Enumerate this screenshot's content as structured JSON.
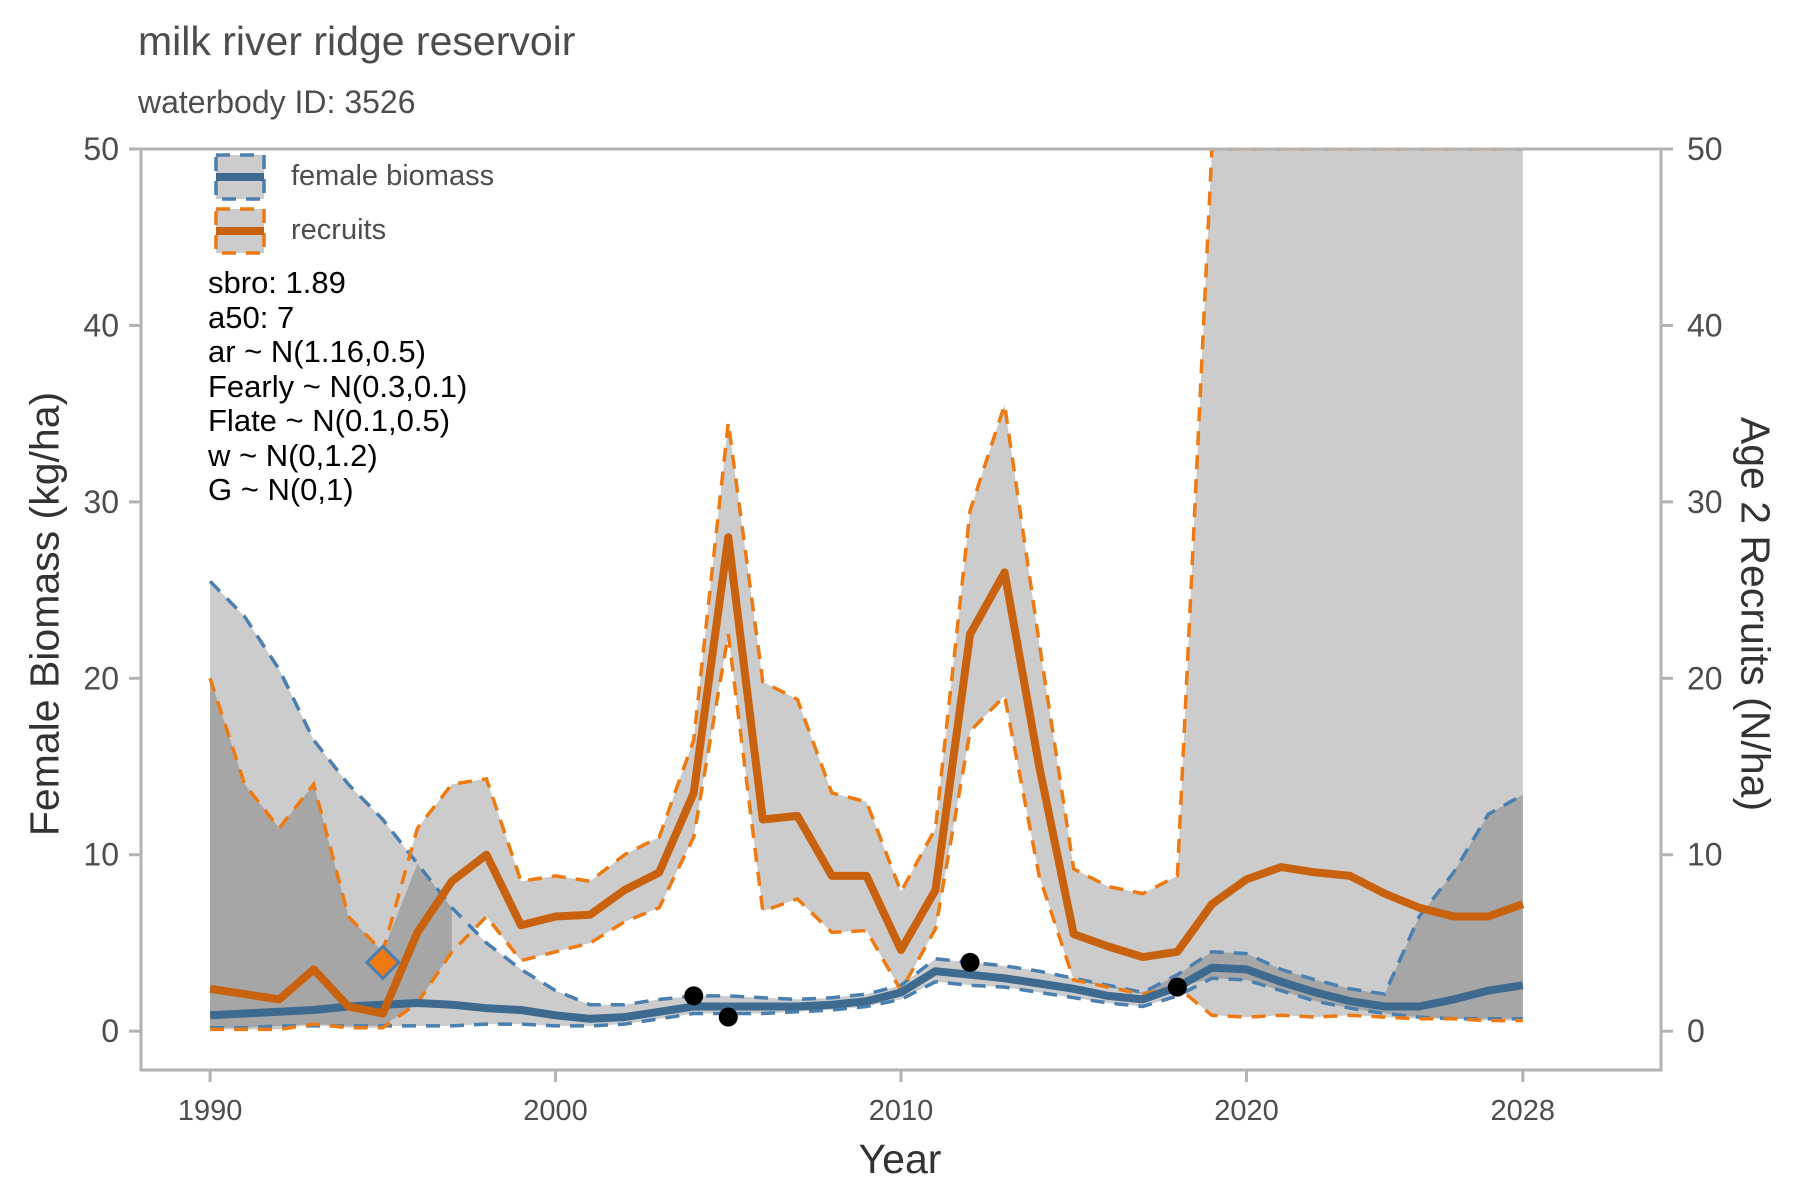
{
  "header": {
    "title": "milk river ridge reservoir",
    "subtitle": "waterbody ID: 3526"
  },
  "params": [
    "sbro: 1.89",
    "a50: 7",
    "ar ~ N(1.16,0.5)",
    "Fearly ~ N(0.3,0.1)",
    "Flate ~ N(0.1,0.5)",
    "w ~ N(0,1.2)",
    "G ~ N(0,1)"
  ],
  "colors": {
    "biomass": "#3f6a8f",
    "biomass_dash": "#4a7fb0",
    "recruits": "#c8620e",
    "recruits_dash": "#ee7a12",
    "ribbon": "#cccccc",
    "overlap": "#a6a6a6",
    "points": "#000000",
    "marker": "#ef7a12"
  },
  "chart_data": {
    "type": "line",
    "xlabel": "Year",
    "ylabel": "Female Biomass (kg/ha)",
    "ylabel_right": "Age 2 Recruits (N/ha)",
    "xlim": [
      1988,
      2032
    ],
    "ylim": [
      -2.2,
      50
    ],
    "y2lim": [
      -2.2,
      50
    ],
    "x_ticks": [
      1990,
      2000,
      2010,
      2020,
      2028
    ],
    "y_ticks": [
      0,
      10,
      20,
      30,
      40,
      50
    ],
    "y2_ticks": [
      0,
      10,
      20,
      30,
      40,
      50
    ],
    "legend": {
      "placement": "top-left",
      "entries": [
        "female biomass",
        "recruits"
      ]
    },
    "grid": false,
    "years": [
      1990,
      1991,
      1992,
      1993,
      1994,
      1995,
      1996,
      1997,
      1998,
      1999,
      2000,
      2001,
      2002,
      2003,
      2004,
      2005,
      2006,
      2007,
      2008,
      2009,
      2010,
      2011,
      2012,
      2013,
      2014,
      2015,
      2016,
      2017,
      2018,
      2019,
      2020,
      2021,
      2022,
      2023,
      2024,
      2025,
      2026,
      2027,
      2028
    ],
    "series": [
      {
        "name": "female biomass",
        "axis": "left",
        "median": [
          0.9,
          1.0,
          1.1,
          1.2,
          1.4,
          1.5,
          1.6,
          1.5,
          1.3,
          1.2,
          0.9,
          0.7,
          0.8,
          1.1,
          1.4,
          1.4,
          1.4,
          1.4,
          1.5,
          1.7,
          2.2,
          3.4,
          3.2,
          3.0,
          2.7,
          2.4,
          2.0,
          1.8,
          2.5,
          3.6,
          3.5,
          2.8,
          2.2,
          1.7,
          1.4,
          1.4,
          1.8,
          2.3,
          2.6
        ],
        "lower": [
          0.2,
          0.2,
          0.3,
          0.3,
          0.3,
          0.3,
          0.3,
          0.3,
          0.4,
          0.4,
          0.3,
          0.3,
          0.4,
          0.7,
          1.0,
          1.0,
          1.0,
          1.1,
          1.2,
          1.4,
          1.8,
          2.8,
          2.6,
          2.5,
          2.2,
          1.9,
          1.6,
          1.4,
          2.0,
          3.0,
          2.9,
          2.3,
          1.7,
          1.3,
          1.0,
          0.8,
          0.7,
          0.7,
          0.7
        ],
        "upper": [
          25.5,
          23.5,
          20.5,
          16.5,
          14.0,
          12.0,
          9.5,
          7.0,
          5.0,
          3.5,
          2.3,
          1.5,
          1.5,
          1.8,
          2.0,
          2.0,
          1.9,
          1.8,
          1.9,
          2.1,
          2.6,
          4.1,
          3.9,
          3.7,
          3.4,
          3.0,
          2.6,
          2.2,
          3.2,
          4.5,
          4.4,
          3.5,
          2.9,
          2.4,
          2.1,
          6.5,
          9.0,
          12.3,
          13.4
        ]
      },
      {
        "name": "recruits",
        "axis": "right",
        "median": [
          2.4,
          2.1,
          1.8,
          3.5,
          1.4,
          1.0,
          5.6,
          8.5,
          10.0,
          6.0,
          6.5,
          6.6,
          8.0,
          9.0,
          13.5,
          28.0,
          12.0,
          12.2,
          8.8,
          8.8,
          4.6,
          8.0,
          22.5,
          26.0,
          15.0,
          5.5,
          4.8,
          4.2,
          4.5,
          7.2,
          8.6,
          9.3,
          9.0,
          8.8,
          7.8,
          7.0,
          6.5,
          6.5,
          7.2
        ],
        "lower": [
          0.1,
          0.1,
          0.1,
          0.4,
          0.2,
          0.2,
          1.6,
          4.5,
          6.5,
          4.0,
          4.5,
          5.0,
          6.2,
          7.0,
          11.0,
          22.5,
          6.8,
          7.5,
          5.6,
          5.7,
          2.3,
          5.8,
          17.0,
          19.0,
          8.8,
          2.9,
          2.5,
          2.1,
          2.5,
          0.9,
          0.8,
          0.9,
          0.8,
          0.9,
          0.8,
          0.7,
          0.7,
          0.6,
          0.6
        ],
        "upper": [
          20.0,
          14.0,
          11.5,
          14.0,
          6.5,
          4.5,
          11.5,
          14.0,
          14.3,
          8.5,
          8.8,
          8.5,
          10.0,
          11.0,
          16.5,
          34.5,
          19.8,
          18.8,
          13.5,
          13.0,
          7.9,
          11.5,
          29.5,
          35.5,
          22.0,
          9.2,
          8.2,
          7.8,
          8.8,
          50.0,
          50.0,
          50.0,
          50.0,
          50.0,
          50.0,
          50.0,
          50.0,
          50.0,
          50.0
        ]
      }
    ],
    "observations": [
      {
        "x": 2004,
        "y": 2.0
      },
      {
        "x": 2005,
        "y": 0.8
      },
      {
        "x": 2012,
        "y": 3.9
      },
      {
        "x": 2018,
        "y": 2.5
      }
    ],
    "marker": {
      "x": 1995,
      "y": 3.9
    }
  }
}
